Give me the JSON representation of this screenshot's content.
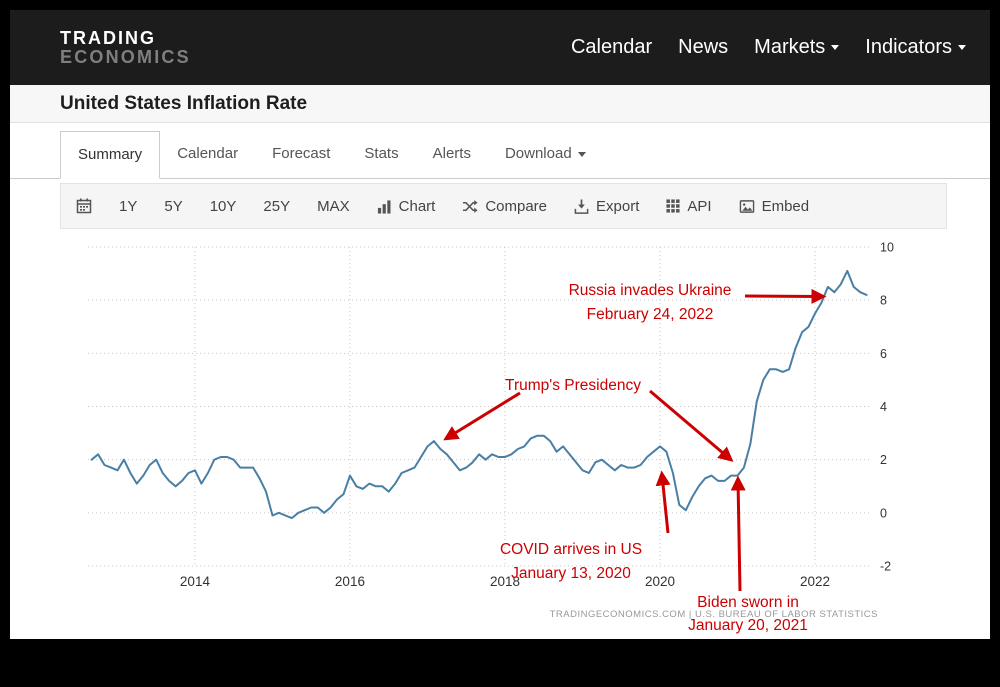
{
  "header": {
    "logo_line1": "TRADING",
    "logo_line2": "ECONOMICS",
    "nav": [
      {
        "label": "Calendar",
        "dropdown": false
      },
      {
        "label": "News",
        "dropdown": false
      },
      {
        "label": "Markets",
        "dropdown": true
      },
      {
        "label": "Indicators",
        "dropdown": true
      }
    ]
  },
  "page": {
    "title": "United States Inflation Rate"
  },
  "tabs": [
    {
      "label": "Summary",
      "active": true
    },
    {
      "label": "Calendar",
      "active": false
    },
    {
      "label": "Forecast",
      "active": false
    },
    {
      "label": "Stats",
      "active": false
    },
    {
      "label": "Alerts",
      "active": false
    },
    {
      "label": "Download",
      "active": false,
      "dropdown": true
    }
  ],
  "toolbar": {
    "calendar_icon": "calendar-icon",
    "ranges": [
      "1Y",
      "5Y",
      "10Y",
      "25Y",
      "MAX"
    ],
    "actions": [
      {
        "icon": "bar-chart-icon",
        "label": "Chart"
      },
      {
        "icon": "compare-icon",
        "label": "Compare"
      },
      {
        "icon": "export-icon",
        "label": "Export"
      },
      {
        "icon": "api-icon",
        "label": "API"
      },
      {
        "icon": "embed-icon",
        "label": "Embed"
      }
    ]
  },
  "chart_data": {
    "type": "line",
    "title": "United States Inflation Rate",
    "ylabel": "",
    "xlabel": "",
    "frequency": "monthly",
    "start": {
      "year": 2012,
      "month": 9
    },
    "values": [
      2.0,
      2.2,
      1.8,
      1.7,
      1.6,
      2.0,
      1.5,
      1.1,
      1.4,
      1.8,
      2.0,
      1.5,
      1.2,
      1.0,
      1.2,
      1.5,
      1.6,
      1.1,
      1.5,
      2.0,
      2.1,
      2.1,
      2.0,
      1.7,
      1.7,
      1.7,
      1.3,
      0.8,
      -0.1,
      0.0,
      -0.1,
      -0.2,
      0.0,
      0.1,
      0.2,
      0.2,
      0.0,
      0.2,
      0.5,
      0.7,
      1.4,
      1.0,
      0.9,
      1.1,
      1.0,
      1.0,
      0.8,
      1.1,
      1.5,
      1.6,
      1.7,
      2.1,
      2.5,
      2.7,
      2.4,
      2.2,
      1.9,
      1.6,
      1.7,
      1.9,
      2.2,
      2.0,
      2.2,
      2.1,
      2.1,
      2.2,
      2.4,
      2.5,
      2.8,
      2.9,
      2.9,
      2.7,
      2.3,
      2.5,
      2.2,
      1.9,
      1.6,
      1.5,
      1.9,
      2.0,
      1.8,
      1.6,
      1.8,
      1.7,
      1.7,
      1.8,
      2.1,
      2.3,
      2.5,
      2.3,
      1.5,
      0.3,
      0.1,
      0.6,
      1.0,
      1.3,
      1.4,
      1.2,
      1.2,
      1.4,
      1.4,
      1.7,
      2.6,
      4.2,
      5.0,
      5.4,
      5.4,
      5.3,
      5.4,
      6.2,
      6.8,
      7.0,
      7.5,
      7.9,
      8.5,
      8.3,
      8.6,
      9.1,
      8.5,
      8.3,
      8.2
    ],
    "x_ticks": [
      2014,
      2016,
      2018,
      2020,
      2022
    ],
    "y_ticks": [
      -2,
      0,
      2,
      4,
      6,
      8,
      10
    ],
    "x_domain": [
      2012.62,
      2022.71
    ],
    "y_domain": [
      -2,
      10
    ],
    "y_axis_side": "right",
    "grid": "dotted",
    "colors": {
      "line": "#4a7fa5",
      "annotation": "#cc0000"
    },
    "annotations": [
      {
        "lines": [
          "Russia invades Ukraine",
          "February 24, 2022"
        ],
        "target": "2022-02"
      },
      {
        "lines": [
          "Trump's Presidency"
        ],
        "target": "2017-01 to 2021-01"
      },
      {
        "lines": [
          "COVID arrives in US",
          "January 13, 2020"
        ],
        "target": "2020-01"
      },
      {
        "lines": [
          "Biden sworn in",
          "January 20, 2021"
        ],
        "target": "2021-01"
      }
    ],
    "source_note": "TRADINGECONOMICS.COM  |  U.S. BUREAU OF LABOR STATISTICS"
  }
}
